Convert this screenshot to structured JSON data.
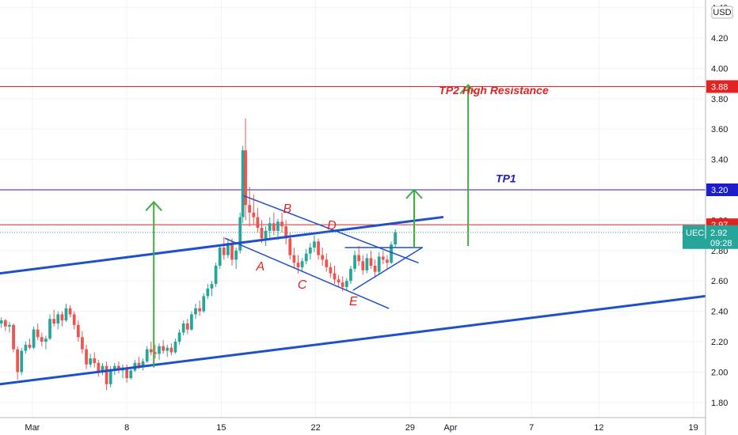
{
  "chart_data": {
    "type": "candlestick",
    "symbol": "UEC",
    "currency": "USD",
    "last_price": "2.92",
    "countdown": "09:28",
    "y_ticks": [
      "1.80",
      "2.00",
      "2.20",
      "2.40",
      "2.60",
      "2.80",
      "3.00",
      "3.20",
      "3.40",
      "3.60",
      "3.80",
      "4.00",
      "4.20",
      "4.40"
    ],
    "x_ticks": [
      {
        "label": "Mar",
        "day": 0
      },
      {
        "label": "8",
        "day": 7
      },
      {
        "label": "15",
        "day": 14
      },
      {
        "label": "22",
        "day": 21
      },
      {
        "label": "29",
        "day": 28
      },
      {
        "label": "Apr",
        "day": 31
      },
      {
        "label": "7",
        "day": 37
      },
      {
        "label": "12",
        "day": 42
      },
      {
        "label": "19",
        "day": 49
      }
    ],
    "ylim": [
      1.7,
      4.45
    ],
    "xlim": [
      -2.4,
      49.9
    ],
    "price_lines": [
      {
        "name": "tp2",
        "price": 3.88,
        "label": "3.88",
        "color": "#e52222"
      },
      {
        "name": "tp1",
        "price": 3.2,
        "label": "3.20",
        "color": "#1d1dcc"
      },
      {
        "name": "resistance",
        "price": 2.97,
        "label": "2.97",
        "color": "#e52222"
      }
    ],
    "annotations": [
      {
        "text": "TP2 High Resistance",
        "day": 34.2,
        "price": 3.83,
        "color": "#e52222"
      },
      {
        "text": "TP1",
        "day": 35.1,
        "price": 3.25,
        "color": "#1d1dcc"
      }
    ],
    "pattern_points": [
      {
        "text": "A",
        "day": 16.9,
        "price": 2.67
      },
      {
        "text": "B",
        "day": 18.9,
        "price": 3.05
      },
      {
        "text": "C",
        "day": 20.0,
        "price": 2.55
      },
      {
        "text": "D",
        "day": 22.2,
        "price": 2.94
      },
      {
        "text": "E",
        "day": 23.8,
        "price": 2.44
      }
    ],
    "trendlines": [
      {
        "name": "lower-channel",
        "from": [
          -2.4,
          1.92
        ],
        "to": [
          49.9,
          2.5
        ],
        "color": "#1f4fc9",
        "width": 3
      },
      {
        "name": "upper-channel",
        "from": [
          -2.4,
          2.65
        ],
        "to": [
          30.4,
          3.02
        ],
        "color": "#1f4fc9",
        "width": 3
      },
      {
        "name": "triangle-top",
        "from": [
          15.7,
          3.16
        ],
        "to": [
          28.6,
          2.72
        ],
        "color": "#1f4fc9",
        "width": 1.5
      },
      {
        "name": "triangle-bottom",
        "from": [
          14.3,
          2.88
        ],
        "to": [
          26.4,
          2.42
        ],
        "color": "#1f4fc9",
        "width": 1.5
      },
      {
        "name": "pennant-top",
        "from": [
          23.2,
          2.82
        ],
        "to": [
          28.9,
          2.82
        ],
        "color": "#1f4fc9",
        "width": 1.5
      },
      {
        "name": "pennant-bottom",
        "from": [
          23.8,
          2.54
        ],
        "to": [
          28.9,
          2.82
        ],
        "color": "#1f4fc9",
        "width": 1.5
      }
    ],
    "arrows": [
      {
        "name": "arrow-left",
        "day": 9.0,
        "from": 2.03,
        "to": 3.12,
        "color": "#3cae3c"
      },
      {
        "name": "arrow-mid",
        "day": 28.3,
        "from": 2.82,
        "to": 3.2,
        "color": "#3cae3c"
      },
      {
        "name": "arrow-tp2",
        "day": 32.3,
        "from": 2.83,
        "to": 3.89,
        "color": "#3cae3c"
      }
    ],
    "candles": [
      [
        -2.3,
        2.32,
        2.36,
        2.29,
        2.34
      ],
      [
        -2.0,
        2.34,
        2.35,
        2.27,
        2.3
      ],
      [
        -1.7,
        2.3,
        2.33,
        2.26,
        2.31
      ],
      [
        -1.4,
        2.31,
        2.32,
        2.13,
        2.15
      ],
      [
        -1.1,
        2.15,
        2.17,
        1.95,
        2.0
      ],
      [
        -0.8,
        2.0,
        2.16,
        1.98,
        2.14
      ],
      [
        -0.5,
        2.14,
        2.2,
        2.12,
        2.18
      ],
      [
        -0.2,
        2.18,
        2.22,
        2.15,
        2.16
      ],
      [
        0.1,
        2.16,
        2.3,
        2.15,
        2.28
      ],
      [
        0.4,
        2.28,
        2.32,
        2.21,
        2.23
      ],
      [
        0.7,
        2.23,
        2.26,
        2.17,
        2.2
      ],
      [
        1.0,
        2.2,
        2.24,
        2.15,
        2.22
      ],
      [
        1.3,
        2.22,
        2.38,
        2.21,
        2.35
      ],
      [
        1.6,
        2.35,
        2.41,
        2.3,
        2.32
      ],
      [
        1.9,
        2.32,
        2.4,
        2.28,
        2.38
      ],
      [
        2.2,
        2.38,
        2.4,
        2.3,
        2.34
      ],
      [
        2.5,
        2.34,
        2.45,
        2.33,
        2.42
      ],
      [
        2.8,
        2.42,
        2.44,
        2.36,
        2.38
      ],
      [
        3.1,
        2.38,
        2.4,
        2.28,
        2.31
      ],
      [
        3.4,
        2.31,
        2.34,
        2.2,
        2.23
      ],
      [
        3.7,
        2.23,
        2.27,
        2.12,
        2.15
      ],
      [
        4.0,
        2.15,
        2.18,
        2.02,
        2.05
      ],
      [
        4.3,
        2.05,
        2.12,
        2.03,
        2.09
      ],
      [
        4.6,
        2.09,
        2.13,
        2.03,
        2.06
      ],
      [
        4.9,
        2.06,
        2.08,
        1.97,
        2.0
      ],
      [
        5.2,
        2.0,
        2.06,
        1.98,
        2.04
      ],
      [
        5.5,
        2.04,
        2.07,
        1.88,
        1.92
      ],
      [
        5.8,
        1.92,
        2.04,
        1.9,
        2.02
      ],
      [
        6.1,
        2.02,
        2.06,
        1.98,
        2.04
      ],
      [
        6.4,
        2.04,
        2.07,
        1.99,
        2.01
      ],
      [
        6.7,
        2.01,
        2.05,
        1.96,
        2.03
      ],
      [
        7.0,
        2.03,
        2.05,
        1.93,
        1.96
      ],
      [
        7.3,
        1.96,
        2.03,
        1.95,
        2.01
      ],
      [
        7.6,
        2.01,
        2.08,
        2.0,
        2.06
      ],
      [
        7.9,
        2.06,
        2.1,
        2.02,
        2.04
      ],
      [
        8.2,
        2.04,
        2.09,
        2.01,
        2.07
      ],
      [
        8.5,
        2.07,
        2.17,
        2.06,
        2.15
      ],
      [
        8.8,
        2.15,
        2.2,
        2.11,
        2.13
      ],
      [
        9.1,
        2.13,
        2.18,
        2.09,
        2.12
      ],
      [
        9.4,
        2.12,
        2.19,
        2.08,
        2.17
      ],
      [
        9.7,
        2.17,
        2.21,
        2.12,
        2.14
      ],
      [
        10.0,
        2.14,
        2.18,
        2.1,
        2.16
      ],
      [
        10.3,
        2.16,
        2.19,
        2.11,
        2.13
      ],
      [
        10.6,
        2.13,
        2.22,
        2.12,
        2.2
      ],
      [
        10.9,
        2.2,
        2.28,
        2.18,
        2.26
      ],
      [
        11.2,
        2.26,
        2.34,
        2.24,
        2.32
      ],
      [
        11.5,
        2.32,
        2.35,
        2.25,
        2.28
      ],
      [
        11.8,
        2.28,
        2.4,
        2.27,
        2.38
      ],
      [
        12.1,
        2.38,
        2.45,
        2.35,
        2.42
      ],
      [
        12.4,
        2.42,
        2.47,
        2.37,
        2.4
      ],
      [
        12.7,
        2.4,
        2.52,
        2.39,
        2.5
      ],
      [
        13.0,
        2.5,
        2.58,
        2.48,
        2.55
      ],
      [
        13.3,
        2.55,
        2.6,
        2.5,
        2.58
      ],
      [
        13.6,
        2.58,
        2.72,
        2.56,
        2.7
      ],
      [
        13.9,
        2.7,
        2.84,
        2.68,
        2.82
      ],
      [
        14.2,
        2.82,
        2.89,
        2.74,
        2.77
      ],
      [
        14.5,
        2.77,
        2.88,
        2.75,
        2.85
      ],
      [
        14.8,
        2.85,
        2.88,
        2.7,
        2.74
      ],
      [
        15.1,
        2.74,
        2.82,
        2.68,
        2.8
      ],
      [
        15.4,
        2.8,
        3.05,
        2.78,
        3.02
      ],
      [
        15.6,
        3.02,
        3.49,
        2.98,
        3.46
      ],
      [
        15.8,
        3.46,
        3.67,
        3.0,
        3.1
      ],
      [
        16.1,
        3.1,
        3.22,
        2.96,
        3.05
      ],
      [
        16.4,
        3.05,
        3.17,
        2.97,
        3.02
      ],
      [
        16.7,
        3.02,
        3.08,
        2.92,
        2.95
      ],
      [
        17.0,
        2.95,
        3.0,
        2.85,
        2.88
      ],
      [
        17.3,
        2.88,
        2.96,
        2.83,
        2.93
      ],
      [
        17.6,
        2.93,
        3.02,
        2.88,
        2.98
      ],
      [
        17.9,
        2.98,
        3.05,
        2.9,
        2.93
      ],
      [
        18.2,
        2.93,
        3.01,
        2.87,
        2.99
      ],
      [
        18.5,
        2.99,
        3.05,
        2.92,
        2.96
      ],
      [
        18.8,
        2.96,
        3.0,
        2.84,
        2.88
      ],
      [
        19.1,
        2.88,
        2.92,
        2.74,
        2.77
      ],
      [
        19.4,
        2.77,
        2.82,
        2.68,
        2.72
      ],
      [
        19.7,
        2.72,
        2.77,
        2.65,
        2.69
      ],
      [
        20.0,
        2.69,
        2.75,
        2.66,
        2.73
      ],
      [
        20.3,
        2.73,
        2.81,
        2.71,
        2.78
      ],
      [
        20.6,
        2.78,
        2.85,
        2.74,
        2.82
      ],
      [
        20.9,
        2.82,
        2.9,
        2.79,
        2.86
      ],
      [
        21.2,
        2.86,
        2.88,
        2.74,
        2.77
      ],
      [
        21.5,
        2.77,
        2.82,
        2.7,
        2.74
      ],
      [
        21.8,
        2.74,
        2.78,
        2.66,
        2.69
      ],
      [
        22.1,
        2.69,
        2.72,
        2.62,
        2.65
      ],
      [
        22.4,
        2.65,
        2.7,
        2.58,
        2.61
      ],
      [
        22.7,
        2.61,
        2.64,
        2.56,
        2.59
      ],
      [
        23.0,
        2.59,
        2.63,
        2.53,
        2.56
      ],
      [
        23.3,
        2.56,
        2.62,
        2.54,
        2.6
      ],
      [
        23.6,
        2.6,
        2.7,
        2.58,
        2.68
      ],
      [
        23.9,
        2.68,
        2.8,
        2.66,
        2.77
      ],
      [
        24.2,
        2.77,
        2.83,
        2.7,
        2.73
      ],
      [
        24.5,
        2.73,
        2.77,
        2.64,
        2.67
      ],
      [
        24.8,
        2.67,
        2.78,
        2.65,
        2.75
      ],
      [
        25.1,
        2.75,
        2.8,
        2.68,
        2.7
      ],
      [
        25.4,
        2.7,
        2.74,
        2.62,
        2.66
      ],
      [
        25.7,
        2.66,
        2.79,
        2.64,
        2.76
      ],
      [
        26.0,
        2.76,
        2.8,
        2.71,
        2.74
      ],
      [
        26.3,
        2.74,
        2.77,
        2.68,
        2.72
      ],
      [
        26.6,
        2.72,
        2.86,
        2.71,
        2.84
      ],
      [
        26.9,
        2.84,
        2.94,
        2.82,
        2.92
      ]
    ]
  }
}
